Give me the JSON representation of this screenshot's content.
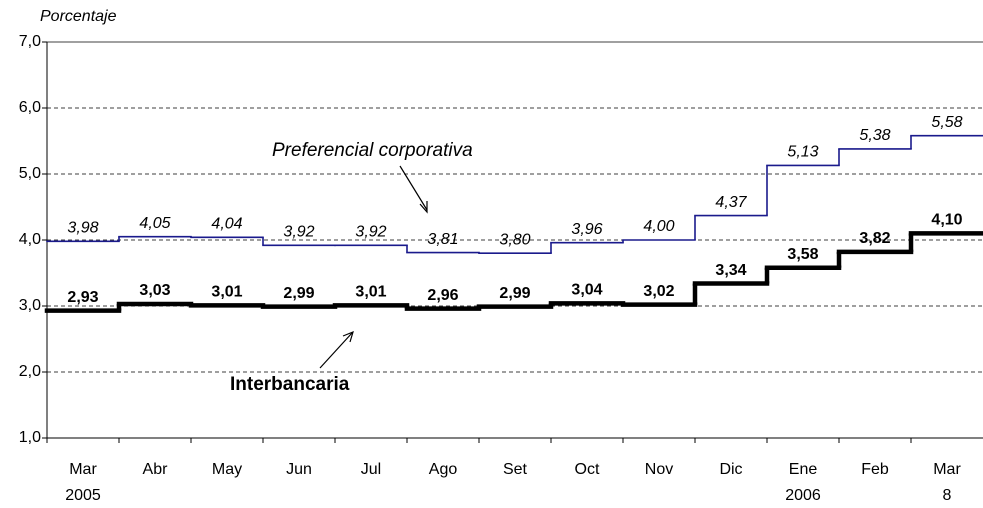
{
  "chart_data": {
    "type": "step",
    "y_label": "Porcentaje",
    "categories": [
      "Mar 2005",
      "Abr",
      "May",
      "Jun",
      "Jul",
      "Ago",
      "Set",
      "Oct",
      "Nov",
      "Dic",
      "Ene 2006",
      "Feb",
      "Mar 8"
    ],
    "series": [
      {
        "name": "Preferencial corporativa",
        "color": "#1a1a8c",
        "values": [
          3.98,
          4.05,
          4.04,
          3.92,
          3.92,
          3.81,
          3.8,
          3.96,
          4.0,
          4.37,
          5.13,
          5.38,
          5.58
        ],
        "value_labels": [
          "3,98",
          "4,05",
          "4,04",
          "3,92",
          "3,92",
          "3,81",
          "3,80",
          "3,96",
          "4,00",
          "4,37",
          "5,13",
          "5,38",
          "5,58"
        ]
      },
      {
        "name": "Interbancaria",
        "color": "#000000",
        "values": [
          2.93,
          3.03,
          3.01,
          2.99,
          3.01,
          2.96,
          2.99,
          3.04,
          3.02,
          3.34,
          3.58,
          3.82,
          4.1
        ],
        "value_labels": [
          "2,93",
          "3,03",
          "3,01",
          "2,99",
          "3,01",
          "2,96",
          "2,99",
          "3,04",
          "3,02",
          "3,34",
          "3,58",
          "3,82",
          "4,10"
        ]
      }
    ],
    "ylim": [
      1,
      7
    ],
    "yticks": [
      {
        "value": 1,
        "label": "1,0"
      },
      {
        "value": 2,
        "label": "2,0"
      },
      {
        "value": 3,
        "label": "3,0"
      },
      {
        "value": 4,
        "label": "4,0"
      },
      {
        "value": 5,
        "label": "5,0"
      },
      {
        "value": 6,
        "label": "6,0"
      },
      {
        "value": 7,
        "label": "7,0"
      }
    ],
    "grid": true
  }
}
